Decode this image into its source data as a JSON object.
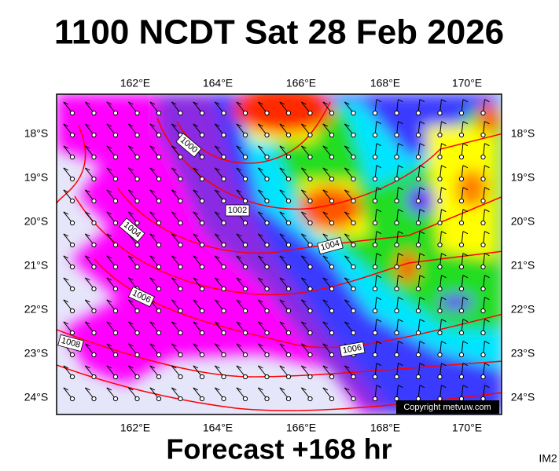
{
  "header": {
    "title": "1100 NCDT Sat 28 Feb 2026"
  },
  "map": {
    "longitude_labels": [
      "162°E",
      "164°E",
      "166°E",
      "168°E",
      "170°E"
    ],
    "latitude_labels": [
      "18°S",
      "19°S",
      "20°S",
      "21°S",
      "22°S",
      "23°S",
      "24°S"
    ],
    "isobar_labels": [
      "1000",
      "1002",
      "1004",
      "1004",
      "1006",
      "1006",
      "1008"
    ],
    "copyright": "Copyright metvuw.com"
  },
  "footer": {
    "forecast": "Forecast +168 hr",
    "image_id": "IM2"
  }
}
